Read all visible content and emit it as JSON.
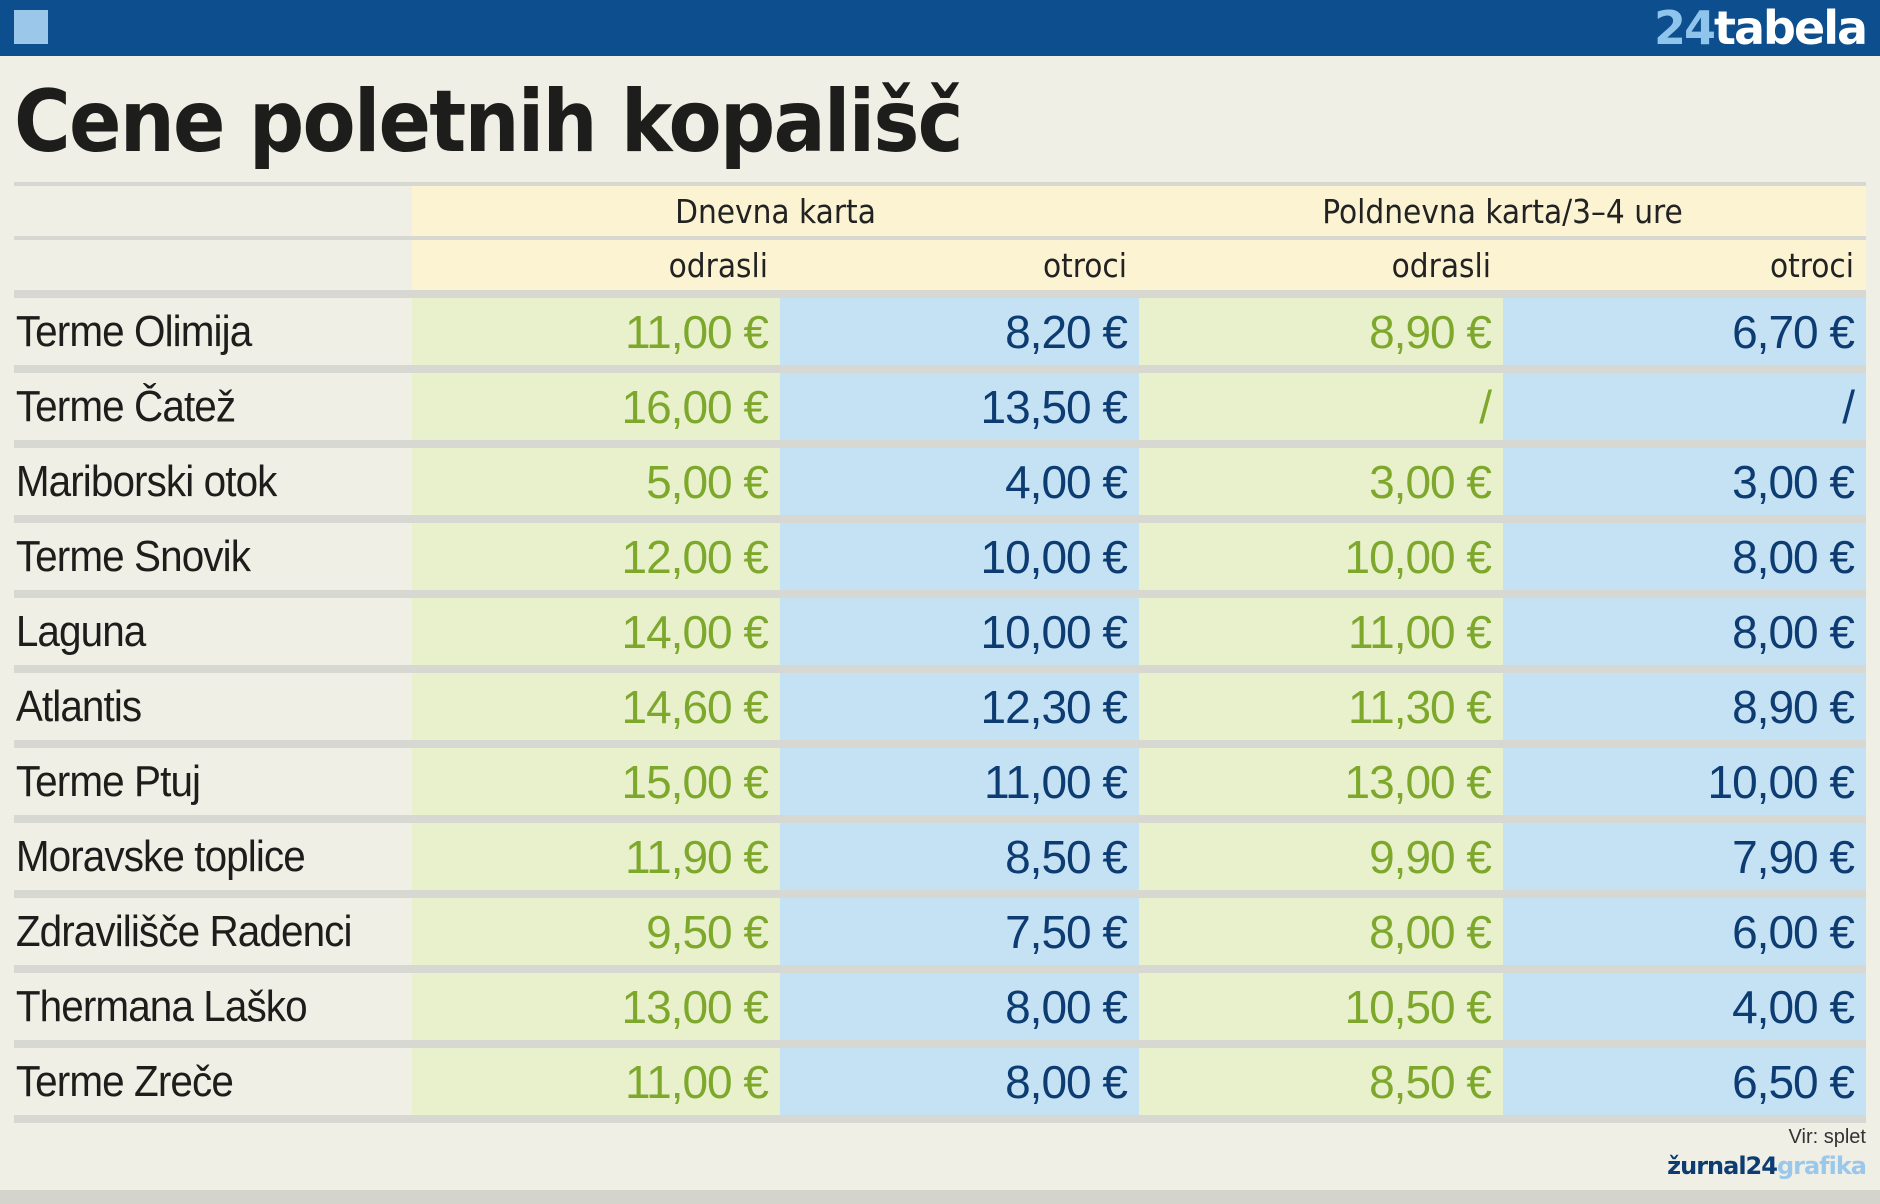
{
  "header": {
    "brand_number": "24",
    "brand_word": "tabela",
    "title": "Cene poletnih kopališč"
  },
  "columns": {
    "group_1": "Dnevna karta",
    "group_2": "Poldnevna karta/3–4 ure",
    "sub_1": "odrasli",
    "sub_2": "otroci",
    "sub_3": "odrasli",
    "sub_4": "otroci"
  },
  "rows": [
    {
      "name": "Terme Olimija",
      "c1": "11,00 €",
      "c2": "8,20 €",
      "c3": "8,90 €",
      "c4": "6,70 €"
    },
    {
      "name": "Terme Čatež",
      "c1": "16,00 €",
      "c2": "13,50 €",
      "c3": "/",
      "c4": "/"
    },
    {
      "name": "Mariborski otok",
      "c1": "5,00 €",
      "c2": "4,00 €",
      "c3": "3,00 €",
      "c4": "3,00 €"
    },
    {
      "name": "Terme Snovik",
      "c1": "12,00 €",
      "c2": "10,00 €",
      "c3": "10,00 €",
      "c4": "8,00 €"
    },
    {
      "name": "Laguna",
      "c1": "14,00 €",
      "c2": "10,00 €",
      "c3": "11,00 €",
      "c4": "8,00 €"
    },
    {
      "name": "Atlantis",
      "c1": "14,60 €",
      "c2": "12,30 €",
      "c3": "11,30 €",
      "c4": "8,90 €"
    },
    {
      "name": "Terme Ptuj",
      "c1": "15,00 €",
      "c2": "11,00 €",
      "c3": "13,00 €",
      "c4": "10,00 €"
    },
    {
      "name": "Moravske toplice",
      "c1": "11,90 €",
      "c2": "8,50 €",
      "c3": "9,90 €",
      "c4": "7,90 €"
    },
    {
      "name": "Zdravilišče Radenci",
      "c1": "9,50 €",
      "c2": "7,50 €",
      "c3": "8,00 €",
      "c4": "6,00 €"
    },
    {
      "name": "Thermana Laško",
      "c1": "13,00 €",
      "c2": "8,00 €",
      "c3": "10,50 €",
      "c4": "4,00 €"
    },
    {
      "name": "Terme Zreče",
      "c1": "11,00 €",
      "c2": "8,00 €",
      "c3": "8,50 €",
      "c4": "6,50 €"
    }
  ],
  "footer": {
    "source": "Vir: splet",
    "brand_dark": "žurnal24",
    "brand_light": "grafika"
  },
  "colors": {
    "top_bar": "#0d4f8e",
    "adult_cell": "#e8f1cc",
    "child_cell": "#c5e2f4",
    "adult_text": "#7ea82c",
    "child_text": "#0d3c73"
  }
}
